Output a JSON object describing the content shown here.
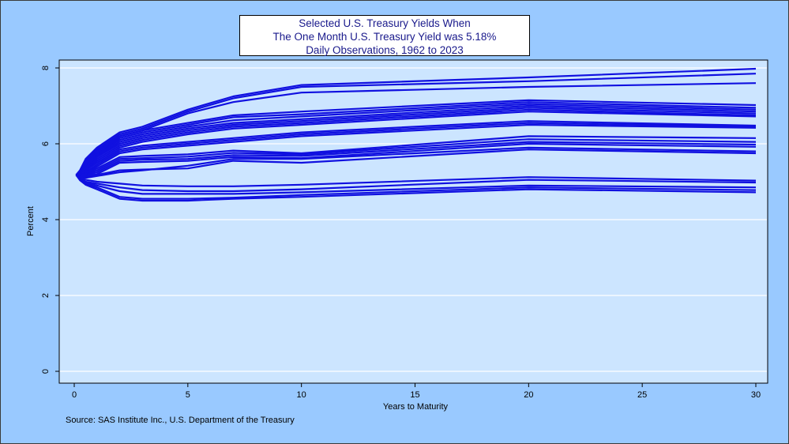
{
  "chart_data": {
    "type": "line",
    "title": [
      "Selected U.S. Treasury Yields When",
      "The One Month U.S. Treasury Yield was 5.18%",
      "Daily Observations, 1962 to 2023"
    ],
    "xlabel": "Years to Maturity",
    "ylabel": "Percent",
    "xlim": [
      0,
      30
    ],
    "ylim": [
      0,
      8
    ],
    "x_ticks": [
      0,
      5,
      10,
      15,
      20,
      25,
      30
    ],
    "y_ticks": [
      0,
      2,
      4,
      6,
      8
    ],
    "grid": "horizontal",
    "x": [
      0.0833,
      0.25,
      0.5,
      1,
      2,
      3,
      5,
      7,
      10,
      20,
      30
    ],
    "series": [
      {
        "values": [
          5.18,
          5.3,
          5.6,
          5.9,
          6.3,
          6.45,
          6.9,
          7.25,
          7.55,
          7.75,
          7.98
        ]
      },
      {
        "values": [
          5.18,
          5.28,
          5.55,
          5.85,
          6.25,
          6.4,
          6.85,
          7.2,
          7.5,
          7.65,
          7.85
        ]
      },
      {
        "values": [
          5.18,
          5.25,
          5.5,
          5.8,
          6.2,
          6.35,
          6.8,
          7.1,
          7.35,
          7.5,
          7.6
        ]
      },
      {
        "values": [
          5.18,
          5.25,
          5.5,
          5.8,
          6.2,
          6.35,
          6.55,
          6.75,
          6.85,
          7.15,
          7.02
        ]
      },
      {
        "values": [
          5.18,
          5.24,
          5.45,
          5.75,
          6.15,
          6.3,
          6.5,
          6.7,
          6.78,
          7.1,
          6.95
        ]
      },
      {
        "values": [
          5.18,
          5.22,
          5.42,
          5.72,
          6.1,
          6.25,
          6.45,
          6.62,
          6.72,
          7.05,
          6.9
        ]
      },
      {
        "values": [
          5.18,
          5.2,
          5.38,
          5.68,
          6.05,
          6.2,
          6.4,
          6.55,
          6.65,
          7.0,
          6.85
        ]
      },
      {
        "values": [
          5.18,
          5.2,
          5.35,
          5.65,
          6.0,
          6.15,
          6.35,
          6.5,
          6.6,
          6.95,
          6.8
        ]
      },
      {
        "values": [
          5.18,
          5.18,
          5.3,
          5.6,
          5.95,
          6.1,
          6.3,
          6.45,
          6.55,
          6.9,
          6.75
        ]
      },
      {
        "values": [
          5.18,
          5.18,
          5.28,
          5.55,
          5.9,
          6.05,
          6.25,
          6.4,
          6.5,
          6.85,
          6.72
        ]
      },
      {
        "values": [
          5.18,
          5.18,
          5.3,
          5.5,
          5.85,
          5.95,
          6.05,
          6.15,
          6.3,
          6.6,
          6.48
        ]
      },
      {
        "values": [
          5.18,
          5.17,
          5.25,
          5.45,
          5.8,
          5.9,
          6.0,
          6.1,
          6.25,
          6.55,
          6.45
        ]
      },
      {
        "values": [
          5.18,
          5.16,
          5.22,
          5.4,
          5.75,
          5.85,
          5.95,
          6.05,
          6.2,
          6.5,
          6.42
        ]
      },
      {
        "values": [
          5.18,
          5.16,
          5.2,
          5.35,
          5.65,
          5.68,
          5.72,
          5.82,
          5.75,
          6.2,
          6.15
        ]
      },
      {
        "values": [
          5.18,
          5.15,
          5.18,
          5.3,
          5.6,
          5.62,
          5.66,
          5.76,
          5.72,
          6.12,
          6.05
        ]
      },
      {
        "values": [
          5.18,
          5.14,
          5.16,
          5.25,
          5.55,
          5.58,
          5.6,
          5.7,
          5.68,
          6.05,
          5.98
        ]
      },
      {
        "values": [
          5.18,
          5.13,
          5.14,
          5.2,
          5.5,
          5.52,
          5.55,
          5.65,
          5.62,
          6.0,
          5.92
        ]
      },
      {
        "values": [
          5.18,
          5.12,
          5.12,
          5.18,
          5.3,
          5.32,
          5.35,
          5.55,
          5.5,
          5.85,
          5.75
        ]
      },
      {
        "values": [
          5.18,
          5.12,
          5.1,
          5.15,
          5.25,
          5.3,
          5.42,
          5.6,
          5.6,
          5.9,
          5.8
        ]
      },
      {
        "values": [
          5.18,
          5.1,
          5.05,
          5.0,
          4.95,
          4.9,
          4.88,
          4.88,
          4.92,
          5.12,
          5.03
        ]
      },
      {
        "values": [
          5.18,
          5.08,
          5.0,
          4.95,
          4.85,
          4.78,
          4.75,
          4.75,
          4.8,
          5.05,
          4.98
        ]
      },
      {
        "values": [
          5.18,
          5.06,
          4.98,
          4.9,
          4.75,
          4.68,
          4.68,
          4.68,
          4.72,
          4.9,
          4.85
        ]
      },
      {
        "values": [
          5.18,
          5.05,
          4.95,
          4.85,
          4.6,
          4.55,
          4.55,
          4.58,
          4.65,
          4.85,
          4.78
        ]
      },
      {
        "values": [
          5.18,
          5.04,
          4.92,
          4.8,
          4.55,
          4.5,
          4.5,
          4.55,
          4.6,
          4.8,
          4.72
        ]
      }
    ]
  },
  "source": "Source: SAS Institute Inc., U.S. Department of the Treasury",
  "colors": {
    "page_bg": "#99c9ff",
    "plot_bg": "#cce5ff",
    "line": "#1010e0",
    "title_text": "#1a1a8c"
  }
}
